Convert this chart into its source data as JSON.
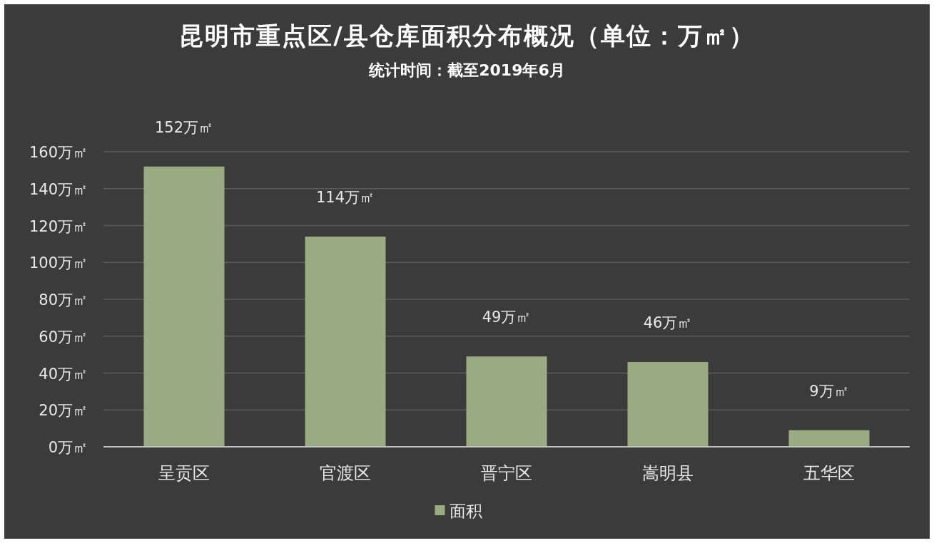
{
  "chart_data": {
    "type": "bar",
    "title": "昆明市重点区/县仓库面积分布概况（单位：万㎡）",
    "subtitle": "统计时间：截至2019年6月",
    "categories": [
      "呈贡区",
      "官渡区",
      "晋宁区",
      "嵩明县",
      "五华区"
    ],
    "series": [
      {
        "name": "面积",
        "color": "#9aab82",
        "values": [
          152,
          114,
          49,
          46,
          9
        ],
        "value_labels": [
          "152万㎡",
          "114万㎡",
          "49万㎡",
          "46万㎡",
          "9万㎡"
        ]
      }
    ],
    "ylim": [
      0,
      160
    ],
    "yticks": [
      {
        "value": 0,
        "label": "0万㎡"
      },
      {
        "value": 20,
        "label": "20万㎡"
      },
      {
        "value": 40,
        "label": "40万㎡"
      },
      {
        "value": 60,
        "label": "60万㎡"
      },
      {
        "value": 80,
        "label": "80万㎡"
      },
      {
        "value": 100,
        "label": "100万㎡"
      },
      {
        "value": 120,
        "label": "120万㎡"
      },
      {
        "value": 140,
        "label": "140万㎡"
      },
      {
        "value": 160,
        "label": "160万㎡"
      }
    ],
    "grid": "y",
    "legend": "bottom"
  }
}
